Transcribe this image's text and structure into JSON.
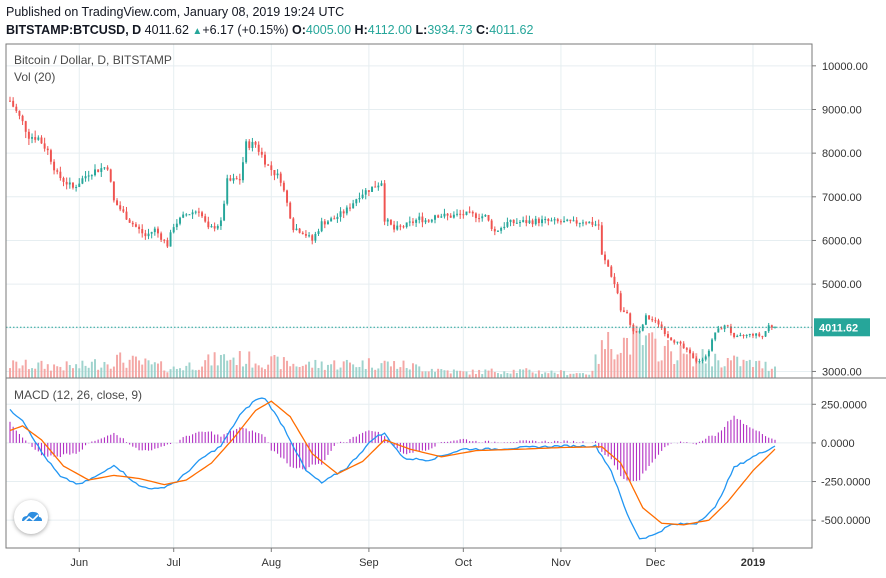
{
  "header": {
    "published": "Published on TradingView.com, January 08, 2019 19:24 UTC",
    "symbol": "BITSTAMP:BTCUSD, D",
    "last": "4011.62",
    "change": "+6.17 (+0.15%)",
    "open_label": "O:",
    "open": "4005.00",
    "high_label": "H:",
    "high": "4112.00",
    "low_label": "L:",
    "low": "3934.73",
    "close_label": "C:",
    "close": "4011.62"
  },
  "legend": {
    "price": "Bitcoin / Dollar, D, BITSTAMP",
    "volume": "Vol (20)",
    "macd": "MACD (12, 26, close, 9)"
  },
  "colors": {
    "up": "#26a69a",
    "down": "#ef5350",
    "up_vol": "#9fd3cd",
    "down_vol": "#f4a7a5",
    "macd_line": "#2196f3",
    "signal_line": "#ff6d00",
    "hist": "#b12fc3",
    "price_line": "#26a69a",
    "grid": "#e6eef1"
  },
  "price_axis": [
    "10000.00",
    "9000.00",
    "8000.00",
    "7000.00",
    "6000.00",
    "5000.00",
    "3000.00"
  ],
  "price_marker": "4011.62",
  "macd_axis": [
    "250.0000",
    "0.0000",
    "-250.0000",
    "-500.0000"
  ],
  "x_axis": [
    "Jun",
    "Jul",
    "Aug",
    "Sep",
    "Oct",
    "Nov",
    "Dec",
    "2019"
  ],
  "chart_data": {
    "type": "candlestick",
    "x_range": [
      "2018-05-10",
      "2019-01-08"
    ],
    "ylim_price": [
      2850,
      10500
    ],
    "ylim_macd": [
      -680,
      420
    ],
    "price_anchors": [
      {
        "d": "2018-05-10",
        "v": 9200
      },
      {
        "d": "2018-05-14",
        "v": 8700
      },
      {
        "d": "2018-05-16",
        "v": 8400
      },
      {
        "d": "2018-05-19",
        "v": 8350
      },
      {
        "d": "2018-05-22",
        "v": 8050
      },
      {
        "d": "2018-05-25",
        "v": 7500
      },
      {
        "d": "2018-05-30",
        "v": 7200
      },
      {
        "d": "2018-06-04",
        "v": 7550
      },
      {
        "d": "2018-06-10",
        "v": 7700
      },
      {
        "d": "2018-06-12",
        "v": 6900
      },
      {
        "d": "2018-06-17",
        "v": 6450
      },
      {
        "d": "2018-06-22",
        "v": 6100
      },
      {
        "d": "2018-06-25",
        "v": 6250
      },
      {
        "d": "2018-06-29",
        "v": 5900
      },
      {
        "d": "2018-07-01",
        "v": 6350
      },
      {
        "d": "2018-07-05",
        "v": 6600
      },
      {
        "d": "2018-07-09",
        "v": 6700
      },
      {
        "d": "2018-07-12",
        "v": 6250
      },
      {
        "d": "2018-07-16",
        "v": 6400
      },
      {
        "d": "2018-07-18",
        "v": 7350
      },
      {
        "d": "2018-07-22",
        "v": 7400
      },
      {
        "d": "2018-07-24",
        "v": 8200
      },
      {
        "d": "2018-07-27",
        "v": 8200
      },
      {
        "d": "2018-07-31",
        "v": 7700
      },
      {
        "d": "2018-08-04",
        "v": 7400
      },
      {
        "d": "2018-08-08",
        "v": 6300
      },
      {
        "d": "2018-08-11",
        "v": 6200
      },
      {
        "d": "2018-08-14",
        "v": 6000
      },
      {
        "d": "2018-08-17",
        "v": 6400
      },
      {
        "d": "2018-08-21",
        "v": 6500
      },
      {
        "d": "2018-08-25",
        "v": 6700
      },
      {
        "d": "2018-08-29",
        "v": 7050
      },
      {
        "d": "2018-09-03",
        "v": 7250
      },
      {
        "d": "2018-09-05",
        "v": 7350
      },
      {
        "d": "2018-09-06",
        "v": 6500
      },
      {
        "d": "2018-09-09",
        "v": 6250
      },
      {
        "d": "2018-09-13",
        "v": 6350
      },
      {
        "d": "2018-09-17",
        "v": 6500
      },
      {
        "d": "2018-09-20",
        "v": 6450
      },
      {
        "d": "2018-09-22",
        "v": 6600
      },
      {
        "d": "2018-09-26",
        "v": 6550
      },
      {
        "d": "2018-10-01",
        "v": 6600
      },
      {
        "d": "2018-10-08",
        "v": 6550
      },
      {
        "d": "2018-10-11",
        "v": 6200
      },
      {
        "d": "2018-10-15",
        "v": 6400
      },
      {
        "d": "2018-10-25",
        "v": 6450
      },
      {
        "d": "2018-11-05",
        "v": 6400
      },
      {
        "d": "2018-11-08",
        "v": 6450
      },
      {
        "d": "2018-11-13",
        "v": 6350
      },
      {
        "d": "2018-11-14",
        "v": 5650
      },
      {
        "d": "2018-11-16",
        "v": 5400
      },
      {
        "d": "2018-11-19",
        "v": 4800
      },
      {
        "d": "2018-11-20",
        "v": 4400
      },
      {
        "d": "2018-11-22",
        "v": 4300
      },
      {
        "d": "2018-11-24",
        "v": 3900
      },
      {
        "d": "2018-11-26",
        "v": 3900
      },
      {
        "d": "2018-11-28",
        "v": 4250
      },
      {
        "d": "2018-12-02",
        "v": 4100
      },
      {
        "d": "2018-12-05",
        "v": 3800
      },
      {
        "d": "2018-12-09",
        "v": 3600
      },
      {
        "d": "2018-12-14",
        "v": 3250
      },
      {
        "d": "2018-12-16",
        "v": 3250
      },
      {
        "d": "2018-12-18",
        "v": 3500
      },
      {
        "d": "2018-12-20",
        "v": 3900
      },
      {
        "d": "2018-12-22",
        "v": 4000
      },
      {
        "d": "2018-12-24",
        "v": 4050
      },
      {
        "d": "2018-12-26",
        "v": 3750
      },
      {
        "d": "2018-12-28",
        "v": 3800
      },
      {
        "d": "2019-01-01",
        "v": 3850
      },
      {
        "d": "2019-01-04",
        "v": 3800
      },
      {
        "d": "2019-01-06",
        "v": 4050
      },
      {
        "d": "2019-01-08",
        "v": 4011.62
      }
    ],
    "macd_anchors": [
      {
        "d": "2018-05-10",
        "v": 210
      },
      {
        "d": "2018-05-14",
        "v": 150
      },
      {
        "d": "2018-05-20",
        "v": -60
      },
      {
        "d": "2018-05-26",
        "v": -220
      },
      {
        "d": "2018-06-01",
        "v": -270
      },
      {
        "d": "2018-06-08",
        "v": -200
      },
      {
        "d": "2018-06-12",
        "v": -140
      },
      {
        "d": "2018-06-20",
        "v": -280
      },
      {
        "d": "2018-06-26",
        "v": -300
      },
      {
        "d": "2018-07-02",
        "v": -250
      },
      {
        "d": "2018-07-10",
        "v": -100
      },
      {
        "d": "2018-07-16",
        "v": -20
      },
      {
        "d": "2018-07-22",
        "v": 180
      },
      {
        "d": "2018-07-27",
        "v": 280
      },
      {
        "d": "2018-07-30",
        "v": 290
      },
      {
        "d": "2018-08-05",
        "v": 100
      },
      {
        "d": "2018-08-12",
        "v": -180
      },
      {
        "d": "2018-08-17",
        "v": -260
      },
      {
        "d": "2018-08-25",
        "v": -160
      },
      {
        "d": "2018-09-03",
        "v": 40
      },
      {
        "d": "2018-09-06",
        "v": 60
      },
      {
        "d": "2018-09-12",
        "v": -100
      },
      {
        "d": "2018-09-20",
        "v": -110
      },
      {
        "d": "2018-10-01",
        "v": -40
      },
      {
        "d": "2018-10-10",
        "v": -40
      },
      {
        "d": "2018-10-20",
        "v": -30
      },
      {
        "d": "2018-11-01",
        "v": -20
      },
      {
        "d": "2018-11-12",
        "v": -20
      },
      {
        "d": "2018-11-17",
        "v": -180
      },
      {
        "d": "2018-11-22",
        "v": -460
      },
      {
        "d": "2018-11-26",
        "v": -620
      },
      {
        "d": "2018-11-30",
        "v": -600
      },
      {
        "d": "2018-12-06",
        "v": -530
      },
      {
        "d": "2018-12-14",
        "v": -520
      },
      {
        "d": "2018-12-20",
        "v": -420
      },
      {
        "d": "2018-12-26",
        "v": -160
      },
      {
        "d": "2019-01-01",
        "v": -90
      },
      {
        "d": "2019-01-08",
        "v": -20
      }
    ],
    "signal_anchors": [
      {
        "d": "2018-05-10",
        "v": 80
      },
      {
        "d": "2018-05-14",
        "v": 110
      },
      {
        "d": "2018-05-20",
        "v": 20
      },
      {
        "d": "2018-05-27",
        "v": -150
      },
      {
        "d": "2018-06-04",
        "v": -240
      },
      {
        "d": "2018-06-12",
        "v": -210
      },
      {
        "d": "2018-06-20",
        "v": -230
      },
      {
        "d": "2018-06-28",
        "v": -270
      },
      {
        "d": "2018-07-05",
        "v": -240
      },
      {
        "d": "2018-07-13",
        "v": -130
      },
      {
        "d": "2018-07-20",
        "v": 30
      },
      {
        "d": "2018-07-27",
        "v": 210
      },
      {
        "d": "2018-08-01",
        "v": 270
      },
      {
        "d": "2018-08-07",
        "v": 170
      },
      {
        "d": "2018-08-14",
        "v": -70
      },
      {
        "d": "2018-08-22",
        "v": -200
      },
      {
        "d": "2018-08-30",
        "v": -120
      },
      {
        "d": "2018-09-06",
        "v": 20
      },
      {
        "d": "2018-09-14",
        "v": -40
      },
      {
        "d": "2018-09-24",
        "v": -90
      },
      {
        "d": "2018-10-05",
        "v": -50
      },
      {
        "d": "2018-10-20",
        "v": -40
      },
      {
        "d": "2018-11-01",
        "v": -30
      },
      {
        "d": "2018-11-14",
        "v": -25
      },
      {
        "d": "2018-11-20",
        "v": -130
      },
      {
        "d": "2018-11-27",
        "v": -420
      },
      {
        "d": "2018-12-03",
        "v": -520
      },
      {
        "d": "2018-12-10",
        "v": -530
      },
      {
        "d": "2018-12-18",
        "v": -500
      },
      {
        "d": "2018-12-24",
        "v": -380
      },
      {
        "d": "2019-01-01",
        "v": -180
      },
      {
        "d": "2019-01-08",
        "v": -40
      }
    ],
    "volume_profile": [
      {
        "d": "2018-05-10",
        "v": 0.35
      },
      {
        "d": "2018-06-01",
        "v": 0.3
      },
      {
        "d": "2018-06-13",
        "v": 0.5
      },
      {
        "d": "2018-07-01",
        "v": 0.25
      },
      {
        "d": "2018-07-18",
        "v": 0.55
      },
      {
        "d": "2018-08-10",
        "v": 0.35
      },
      {
        "d": "2018-09-05",
        "v": 0.4
      },
      {
        "d": "2018-10-01",
        "v": 0.15
      },
      {
        "d": "2018-10-15",
        "v": 0.2
      },
      {
        "d": "2018-11-10",
        "v": 0.12
      },
      {
        "d": "2018-11-15",
        "v": 0.9
      },
      {
        "d": "2018-11-25",
        "v": 1.0
      },
      {
        "d": "2018-12-10",
        "v": 0.6
      },
      {
        "d": "2018-12-20",
        "v": 0.5
      },
      {
        "d": "2019-01-08",
        "v": 0.3
      }
    ]
  }
}
